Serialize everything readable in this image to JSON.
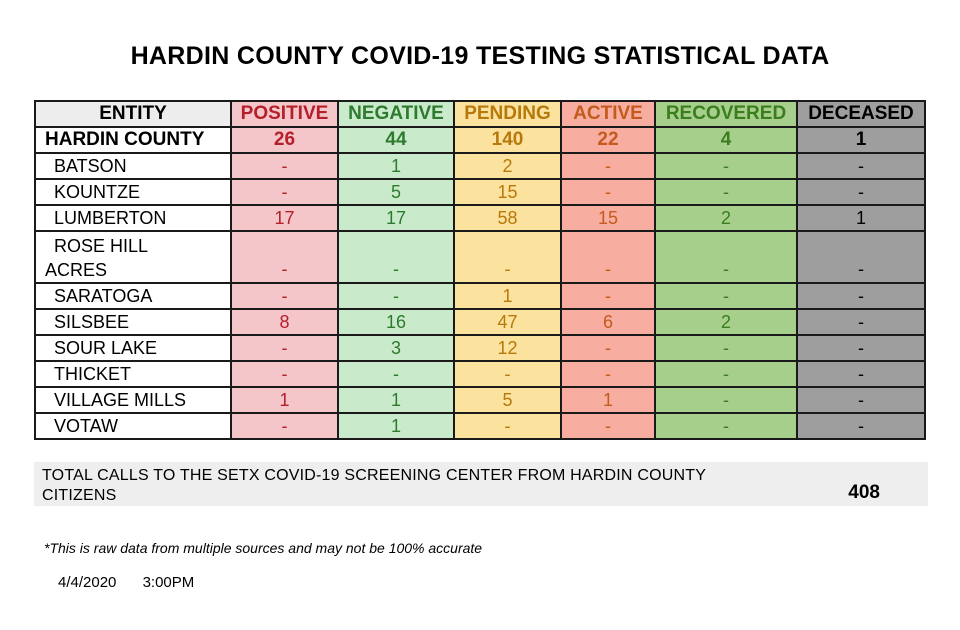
{
  "title": "HARDIN COUNTY COVID-19 TESTING STATISTICAL DATA",
  "colors": {
    "positive_bg": "#f5c6c9",
    "positive_text": "#b3202a",
    "negative_bg": "#c9ebcc",
    "negative_text": "#2e7a2e",
    "pending_bg": "#fbe29e",
    "pending_text": "#b7790b",
    "active_bg": "#f7ad9f",
    "active_text": "#c45a1e",
    "recovered_bg": "#a7cf8c",
    "recovered_text": "#3b7d1f",
    "deceased_bg": "#9e9e9e",
    "deceased_text": "#000000",
    "entity_bg": "#ededed"
  },
  "table": {
    "headers": {
      "entity": "ENTITY",
      "positive": "POSITIVE",
      "negative": "NEGATIVE",
      "pending": "PENDING",
      "active": "ACTIVE",
      "recovered": "RECOVERED",
      "deceased": "DECEASED"
    },
    "county": {
      "name": "HARDIN COUNTY",
      "positive": "26",
      "negative": "44",
      "pending": "140",
      "active": "22",
      "recovered": "4",
      "deceased": "1"
    },
    "rows": [
      {
        "entity": "BATSON",
        "positive": "-",
        "negative": "1",
        "pending": "2",
        "active": "-",
        "recovered": "-",
        "deceased": "-"
      },
      {
        "entity": "KOUNTZE",
        "positive": "-",
        "negative": "5",
        "pending": "15",
        "active": "-",
        "recovered": "-",
        "deceased": "-"
      },
      {
        "entity": "LUMBERTON",
        "positive": "17",
        "negative": "17",
        "pending": "58",
        "active": "15",
        "recovered": "2",
        "deceased": "1"
      },
      {
        "entity_line1": "ROSE HILL",
        "entity_line2": "ACRES",
        "positive": "-",
        "negative": "-",
        "pending": "-",
        "active": "-",
        "recovered": "-",
        "deceased": "-"
      },
      {
        "entity": "SARATOGA",
        "positive": "-",
        "negative": "-",
        "pending": "1",
        "active": "-",
        "recovered": "-",
        "deceased": "-"
      },
      {
        "entity": "SILSBEE",
        "positive": "8",
        "negative": "16",
        "pending": "47",
        "active": "6",
        "recovered": "2",
        "deceased": "-"
      },
      {
        "entity": "SOUR LAKE",
        "positive": "-",
        "negative": "3",
        "pending": "12",
        "active": "-",
        "recovered": "-",
        "deceased": "-"
      },
      {
        "entity": "THICKET",
        "positive": "-",
        "negative": "-",
        "pending": "-",
        "active": "-",
        "recovered": "-",
        "deceased": "-"
      },
      {
        "entity": "VILLAGE MILLS",
        "positive": "1",
        "negative": "1",
        "pending": "5",
        "active": "1",
        "recovered": "-",
        "deceased": "-"
      },
      {
        "entity": "VOTAW",
        "positive": "-",
        "negative": "1",
        "pending": "-",
        "active": "-",
        "recovered": "-",
        "deceased": "-"
      }
    ]
  },
  "totals": {
    "label": "TOTAL CALLS TO THE SETX COVID-19 SCREENING CENTER FROM HARDIN COUNTY CITIZENS",
    "value": "408"
  },
  "disclaimer": "*This is raw data from multiple sources and may not be 100% accurate",
  "date": "4/4/2020",
  "time": "3:00PM"
}
